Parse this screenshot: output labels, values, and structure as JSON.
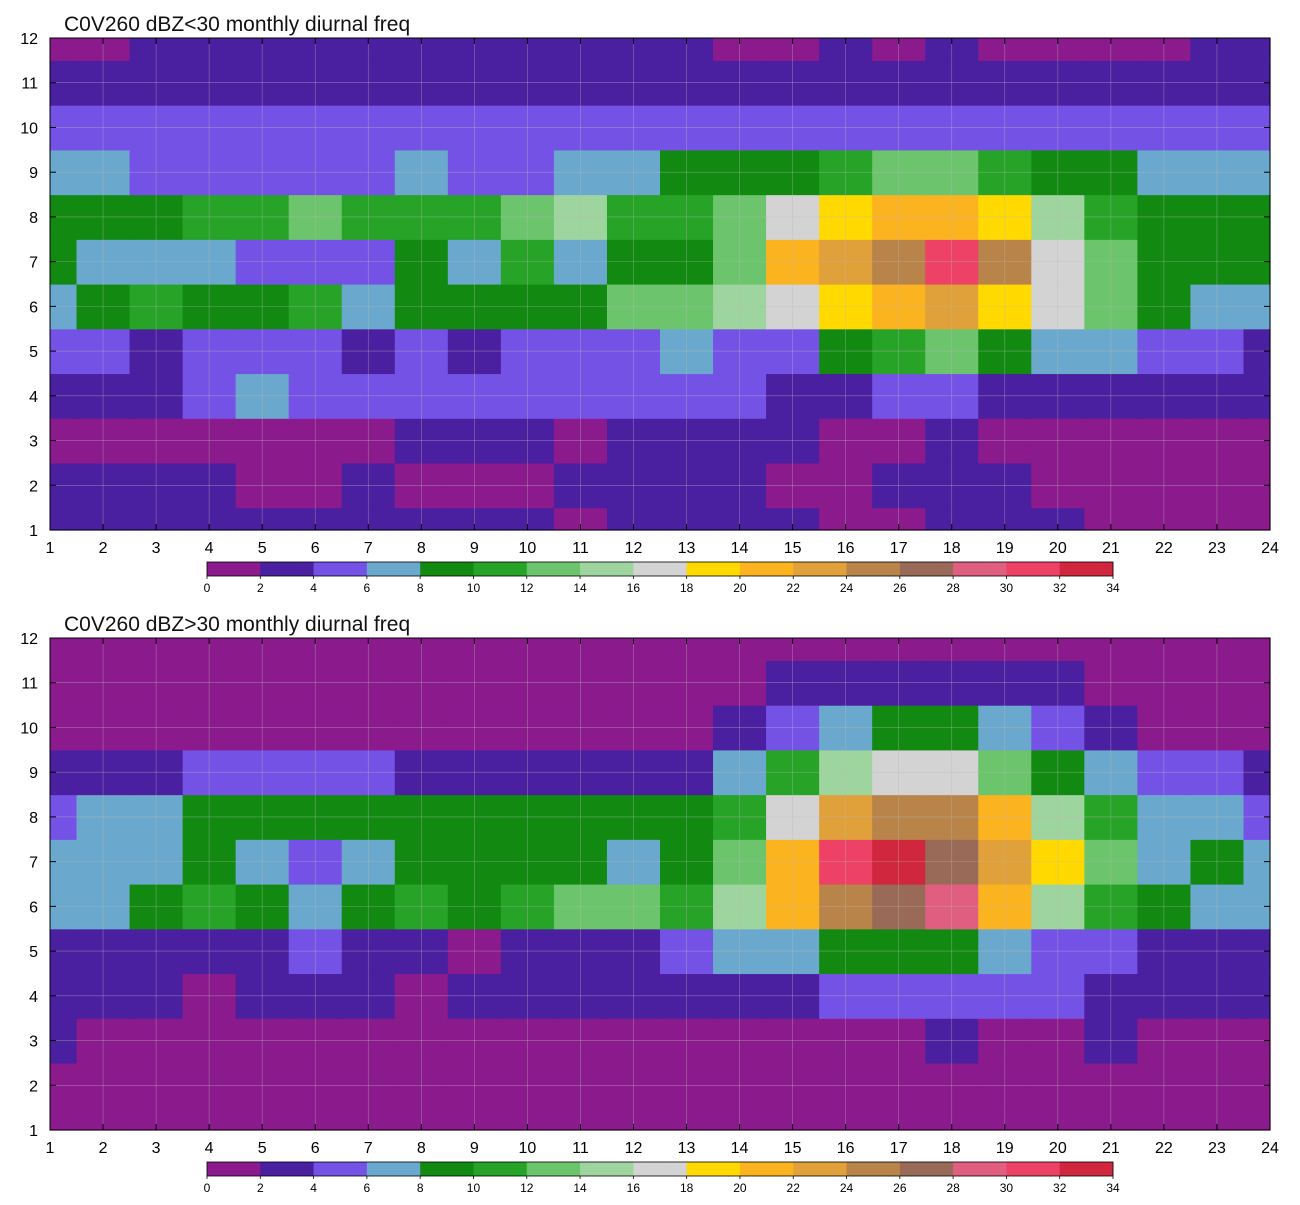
{
  "figure": {
    "colorbar": {
      "levels": [
        0,
        2,
        4,
        6,
        8,
        10,
        12,
        14,
        16,
        18,
        20,
        22,
        24,
        26,
        28,
        30,
        32,
        34
      ],
      "colors": [
        "#8b1a8d",
        "#4a1fa0",
        "#7552e6",
        "#6aa9cd",
        "#128a12",
        "#27a327",
        "#6cc46c",
        "#9ed49e",
        "#d3d3d3",
        "#ffd900",
        "#fbb41f",
        "#e0a03a",
        "#b98449",
        "#9a6a58",
        "#e05f80",
        "#ee4166",
        "#d0263e"
      ],
      "tick_labels": [
        "0",
        "2",
        "4",
        "6",
        "8",
        "10",
        "12",
        "14",
        "16",
        "18",
        "20",
        "22",
        "24",
        "26",
        "28",
        "30",
        "32",
        "34"
      ]
    },
    "contour_line_color": "#f2a23b",
    "grid_color": "#b9b9b9"
  },
  "chart_data": [
    {
      "type": "heatmap",
      "title": "C0V260 dBZ<30 monthly diurnal freq",
      "xlabel": "",
      "ylabel": "",
      "xlim": [
        1,
        24
      ],
      "ylim": [
        1,
        12
      ],
      "x_ticks": [
        "1",
        "2",
        "3",
        "4",
        "5",
        "6",
        "7",
        "8",
        "9",
        "10",
        "11",
        "12",
        "13",
        "14",
        "15",
        "16",
        "17",
        "18",
        "19",
        "20",
        "21",
        "22",
        "23",
        "24"
      ],
      "y_ticks": [
        "1",
        "2",
        "3",
        "4",
        "5",
        "6",
        "7",
        "8",
        "9",
        "10",
        "11",
        "12"
      ],
      "grid": true,
      "colorbar_position": "bottom",
      "x": [
        1,
        2,
        3,
        4,
        5,
        6,
        7,
        8,
        9,
        10,
        11,
        12,
        13,
        14,
        15,
        16,
        17,
        18,
        19,
        20,
        21,
        22,
        23,
        24
      ],
      "y": [
        1,
        2,
        3,
        4,
        5,
        6,
        7,
        8,
        9,
        10,
        11,
        12
      ],
      "z": [
        [
          2,
          3,
          3,
          3,
          3,
          3,
          3,
          3,
          3,
          3,
          1,
          2,
          3,
          3,
          3,
          1,
          1,
          3,
          3,
          3,
          1,
          1,
          1,
          1
        ],
        [
          3,
          3,
          3,
          3,
          1,
          1,
          3,
          1,
          1,
          1,
          3,
          3,
          3,
          3,
          1,
          1,
          3,
          3,
          3,
          1,
          1,
          1,
          1,
          1
        ],
        [
          1,
          1,
          1,
          1,
          1,
          1,
          1,
          3,
          3,
          3,
          1,
          3,
          3,
          3,
          3,
          1,
          1,
          3,
          1,
          1,
          1,
          1,
          1,
          1
        ],
        [
          3,
          3,
          3,
          5,
          7,
          5,
          5,
          5,
          5,
          5,
          5,
          5,
          5,
          5,
          3,
          3,
          5,
          5,
          3,
          3,
          3,
          3,
          3,
          3
        ],
        [
          5,
          5,
          3,
          5,
          5,
          5,
          3,
          5,
          3,
          5,
          5,
          5,
          7,
          5,
          5,
          9,
          11,
          13,
          9,
          7,
          7,
          5,
          5,
          3
        ],
        [
          7,
          9,
          11,
          9,
          9,
          11,
          7,
          9,
          9,
          9,
          9,
          13,
          13,
          15,
          17,
          19,
          21,
          23,
          19,
          17,
          13,
          9,
          7,
          7
        ],
        [
          9,
          7,
          7,
          7,
          5,
          5,
          5,
          9,
          7,
          11,
          7,
          9,
          9,
          13,
          21,
          23,
          25,
          31,
          25,
          17,
          13,
          9,
          9,
          9
        ],
        [
          9,
          9,
          9,
          11,
          11,
          13,
          11,
          11,
          11,
          13,
          15,
          11,
          11,
          13,
          17,
          19,
          21,
          21,
          19,
          15,
          11,
          9,
          9,
          9
        ],
        [
          7,
          7,
          5,
          5,
          5,
          5,
          5,
          7,
          5,
          5,
          7,
          7,
          9,
          9,
          9,
          11,
          13,
          13,
          11,
          9,
          9,
          7,
          7,
          7
        ],
        [
          5,
          5,
          5,
          5,
          5,
          5,
          5,
          5,
          5,
          5,
          5,
          5,
          5,
          5,
          5,
          5,
          5,
          5,
          5,
          5,
          5,
          5,
          5,
          5
        ],
        [
          3,
          3,
          3,
          3,
          3,
          3,
          3,
          3,
          3,
          3,
          3,
          3,
          3,
          3,
          3,
          3,
          3,
          3,
          3,
          3,
          3,
          3,
          3,
          3
        ],
        [
          1,
          1,
          3,
          3,
          3,
          3,
          3,
          3,
          3,
          3,
          3,
          3,
          3,
          1,
          1,
          3,
          1,
          3,
          1,
          1,
          1,
          1,
          3,
          3
        ]
      ]
    },
    {
      "type": "heatmap",
      "title": "C0V260 dBZ>30 monthly diurnal freq",
      "xlabel": "",
      "ylabel": "",
      "xlim": [
        1,
        24
      ],
      "ylim": [
        1,
        12
      ],
      "x_ticks": [
        "1",
        "2",
        "3",
        "4",
        "5",
        "6",
        "7",
        "8",
        "9",
        "10",
        "11",
        "12",
        "13",
        "14",
        "15",
        "16",
        "17",
        "18",
        "19",
        "20",
        "21",
        "22",
        "23",
        "24"
      ],
      "y_ticks": [
        "1",
        "2",
        "3",
        "4",
        "5",
        "6",
        "7",
        "8",
        "9",
        "10",
        "11",
        "12"
      ],
      "grid": true,
      "colorbar_position": "bottom",
      "x": [
        1,
        2,
        3,
        4,
        5,
        6,
        7,
        8,
        9,
        10,
        11,
        12,
        13,
        14,
        15,
        16,
        17,
        18,
        19,
        20,
        21,
        22,
        23,
        24
      ],
      "y": [
        1,
        2,
        3,
        4,
        5,
        6,
        7,
        8,
        9,
        10,
        11,
        12
      ],
      "z": [
        [
          1,
          1,
          1,
          1,
          1,
          1,
          1,
          1,
          1,
          1,
          1,
          1,
          1,
          1,
          1,
          1,
          1,
          1,
          1,
          1,
          1,
          1,
          1,
          1
        ],
        [
          1,
          1,
          1,
          1,
          1,
          1,
          1,
          1,
          1,
          1,
          1,
          1,
          1,
          1,
          1,
          1,
          1,
          1,
          1,
          1,
          1,
          1,
          1,
          1
        ],
        [
          3,
          1,
          1,
          1,
          1,
          1,
          1,
          1,
          1,
          1,
          1,
          1,
          1,
          1,
          1,
          1,
          1,
          3,
          1,
          1,
          3,
          1,
          1,
          1
        ],
        [
          3,
          3,
          3,
          1,
          3,
          3,
          3,
          1,
          3,
          3,
          3,
          3,
          3,
          3,
          3,
          5,
          5,
          5,
          5,
          5,
          3,
          3,
          3,
          3
        ],
        [
          3,
          3,
          3,
          3,
          3,
          5,
          3,
          3,
          1,
          3,
          3,
          3,
          5,
          7,
          7,
          9,
          9,
          9,
          7,
          5,
          5,
          3,
          3,
          3
        ],
        [
          7,
          7,
          9,
          11,
          9,
          7,
          9,
          11,
          9,
          11,
          13,
          13,
          11,
          15,
          21,
          25,
          27,
          29,
          21,
          15,
          11,
          9,
          7,
          7
        ],
        [
          7,
          7,
          7,
          9,
          7,
          5,
          7,
          9,
          9,
          9,
          9,
          7,
          9,
          13,
          21,
          31,
          33,
          27,
          23,
          19,
          13,
          7,
          9,
          7
        ],
        [
          5,
          7,
          7,
          9,
          9,
          9,
          9,
          9,
          9,
          9,
          9,
          9,
          9,
          11,
          17,
          23,
          25,
          25,
          21,
          15,
          11,
          7,
          7,
          5
        ],
        [
          3,
          3,
          3,
          5,
          5,
          5,
          5,
          3,
          3,
          3,
          3,
          3,
          3,
          7,
          11,
          15,
          17,
          17,
          13,
          9,
          7,
          5,
          5,
          3
        ],
        [
          1,
          1,
          1,
          1,
          1,
          1,
          1,
          1,
          1,
          1,
          1,
          1,
          1,
          3,
          5,
          7,
          9,
          9,
          7,
          5,
          3,
          1,
          1,
          1
        ],
        [
          1,
          1,
          1,
          1,
          1,
          1,
          1,
          1,
          1,
          1,
          1,
          1,
          1,
          1,
          3,
          3,
          3,
          3,
          3,
          3,
          1,
          1,
          1,
          1
        ],
        [
          1,
          1,
          1,
          1,
          1,
          1,
          1,
          1,
          1,
          1,
          1,
          1,
          1,
          1,
          1,
          1,
          1,
          1,
          1,
          1,
          1,
          1,
          1,
          1
        ]
      ]
    }
  ]
}
